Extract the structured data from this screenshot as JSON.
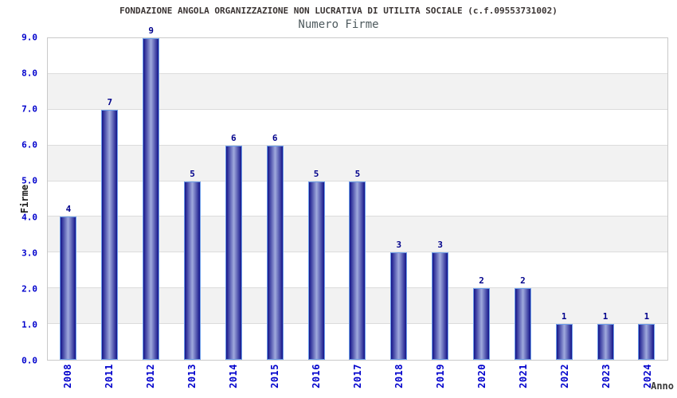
{
  "header": {
    "title": "FONDAZIONE ANGOLA ORGANIZZAZIONE NON LUCRATIVA DI UTILITA SOCIALE (c.f.09553731002)",
    "subtitle": "Numero Firme"
  },
  "chart_data": {
    "type": "bar",
    "title": "Numero Firme",
    "categories": [
      "2008",
      "2011",
      "2012",
      "2013",
      "2014",
      "2015",
      "2016",
      "2017",
      "2018",
      "2019",
      "2020",
      "2021",
      "2022",
      "2023",
      "2024"
    ],
    "values": [
      4,
      7,
      9,
      5,
      6,
      6,
      5,
      5,
      3,
      3,
      2,
      2,
      1,
      1,
      1
    ],
    "xlabel": "Anno",
    "ylabel": "Firme",
    "ylim": [
      0,
      9
    ],
    "ytick_labels": [
      "0.0",
      "1.0",
      "2.0",
      "3.0",
      "4.0",
      "5.0",
      "6.0",
      "7.0",
      "8.0",
      "9.0"
    ],
    "grid": "alternating horizontal bands, gridline at each integer",
    "legend": "none",
    "colors": {
      "bar_edge_dark": "#14148a",
      "bar_center_light": "#a0aadd",
      "bar_outline": "#6d9eea",
      "value_label": "#00008b",
      "axis_tick_label": "#0000cc",
      "band_main": "#ffffff",
      "band_alt": "#f2f2f2",
      "grid_line": "#dcdcdc",
      "plot_border": "#c9c9c9",
      "title_color": "#3a3433",
      "subtitle_color": "#4e5a5e",
      "axis_title_color": "#1a1a1a",
      "xlabel_color": "#3a3a3a"
    }
  }
}
